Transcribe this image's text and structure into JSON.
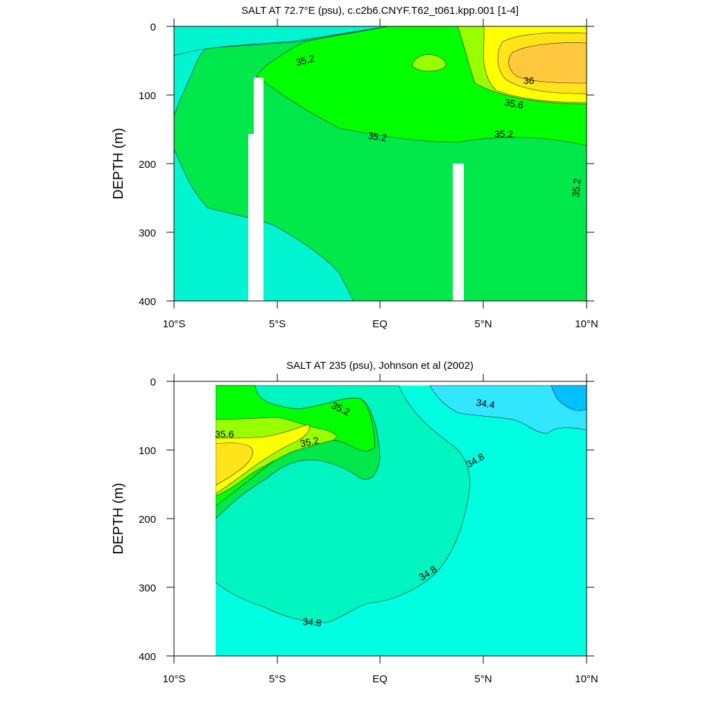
{
  "chart_data": [
    {
      "type": "contour",
      "title": "SALT AT  72.7°E (psu), c.c2b6.CNYF.T62_t061.kpp.001 [1-4]",
      "ylabel": "DEPTH (m)",
      "xlabel": "",
      "x_ticks": [
        "10°S",
        "5°S",
        "EQ",
        "5°N",
        "10°N"
      ],
      "x_tick_values": [
        -10,
        -5,
        0,
        5,
        10
      ],
      "y_ticks": [
        "0",
        "100",
        "200",
        "300",
        "400"
      ],
      "y_tick_values": [
        0,
        100,
        200,
        300,
        400
      ],
      "xlim": [
        -10,
        10
      ],
      "ylim": [
        0,
        400
      ],
      "y_inverted": true,
      "contour_interval": 0.2,
      "fill_levels": [
        {
          "min": 34.8,
          "max": 35.0,
          "color": "#00f5d0"
        },
        {
          "min": 35.0,
          "max": 35.2,
          "color": "#00e84a"
        },
        {
          "min": 35.2,
          "max": 35.4,
          "color": "#00ff00"
        },
        {
          "min": 35.4,
          "max": 35.6,
          "color": "#99ff00"
        },
        {
          "min": 35.6,
          "max": 35.8,
          "color": "#ffff00"
        },
        {
          "min": 35.8,
          "max": 36.0,
          "color": "#ffe41a"
        },
        {
          "min": 36.0,
          "max": 36.2,
          "color": "#ffc83d"
        }
      ],
      "contour_labels": [
        {
          "text": "35.2",
          "x": -4.4,
          "y": 50
        },
        {
          "text": "35.2",
          "x": -0.6,
          "y": 158
        },
        {
          "text": "35.2",
          "x": 5.5,
          "y": 155
        },
        {
          "text": "35.2",
          "x": 9.5,
          "y": 248
        },
        {
          "text": "35.6",
          "x": 5.9,
          "y": 112
        },
        {
          "text": "36",
          "x": 6.9,
          "y": 80
        }
      ],
      "missing_data_columns": [
        {
          "x_range": [
            -6.4,
            -5.7
          ],
          "depth_top": 158
        },
        {
          "x_range": [
            -6.0,
            -5.6
          ],
          "depth_top": 75
        },
        {
          "x_range": [
            3.6,
            4.1
          ],
          "depth_top": 200
        }
      ]
    },
    {
      "type": "contour",
      "title": "SALT AT 235 (psu), Johnson et al (2002)",
      "ylabel": "DEPTH (m)",
      "xlabel": "",
      "x_ticks": [
        "10°S",
        "5°S",
        "EQ",
        "5°N",
        "10°N"
      ],
      "x_tick_values": [
        -10,
        -5,
        0,
        5,
        10
      ],
      "y_ticks": [
        "0",
        "100",
        "200",
        "300",
        "400"
      ],
      "y_tick_values": [
        0,
        100,
        200,
        300,
        400
      ],
      "xlim": [
        -10,
        10
      ],
      "ylim": [
        0,
        400
      ],
      "y_inverted": true,
      "contour_interval": 0.2,
      "data_coverage_x": [
        -8,
        10
      ],
      "fill_levels": [
        {
          "min": 34.2,
          "max": 34.4,
          "color": "#00c0ff"
        },
        {
          "min": 34.4,
          "max": 34.6,
          "color": "#33e6ff"
        },
        {
          "min": 34.6,
          "max": 34.8,
          "color": "#00ffe0"
        },
        {
          "min": 34.8,
          "max": 35.0,
          "color": "#00f5c0"
        },
        {
          "min": 35.0,
          "max": 35.2,
          "color": "#00e84a"
        },
        {
          "min": 35.2,
          "max": 35.4,
          "color": "#00ff00"
        },
        {
          "min": 35.4,
          "max": 35.6,
          "color": "#99ff00"
        },
        {
          "min": 35.6,
          "max": 35.8,
          "color": "#ffff00"
        },
        {
          "min": 35.8,
          "max": 36.0,
          "color": "#ffe41a"
        }
      ],
      "contour_labels": [
        {
          "text": "35.2",
          "x": -1.8,
          "y": 38
        },
        {
          "text": "35.6",
          "x": -7.4,
          "y": 73
        },
        {
          "text": "35.2",
          "x": -3.2,
          "y": 88
        },
        {
          "text": "34.4",
          "x": 5.2,
          "y": 28
        },
        {
          "text": "34.8",
          "x": 4.7,
          "y": 113
        },
        {
          "text": "34.8",
          "x": 2.4,
          "y": 275
        },
        {
          "text": "34.8",
          "x": -3.2,
          "y": 343
        }
      ]
    }
  ]
}
